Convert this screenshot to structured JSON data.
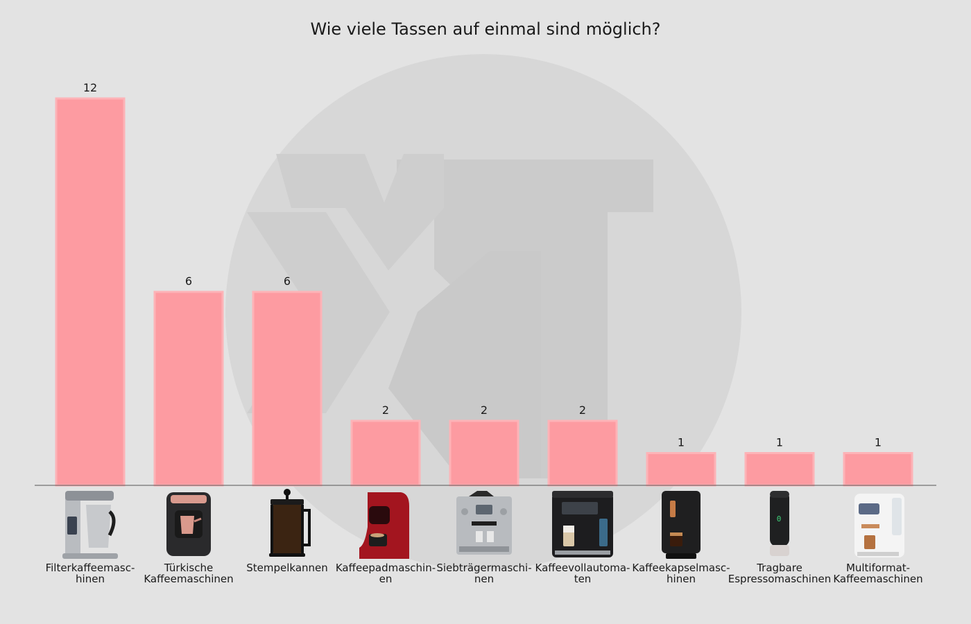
{
  "chart_data": {
    "type": "bar",
    "title": "Wie viele Tassen auf einmal sind möglich?",
    "categories": [
      "Filterkaffeemaschinen",
      "Türkische Kaffeemaschinen",
      "Stempelkannen",
      "Kaffeepadmaschinen",
      "Siebträgermaschinen",
      "Kaffeevollautomaten",
      "Kaffeekapselmaschinen",
      "Tragbare Espressomaschinen",
      "Multiformat-Kaffeemaschinen"
    ],
    "category_label_lines": [
      [
        "Filterkaffeemasc-",
        "hinen"
      ],
      [
        "Türkische",
        "Kaffeemaschinen"
      ],
      [
        "Stempelkannen"
      ],
      [
        "Kaffeepadmaschin-",
        "en"
      ],
      [
        "Siebträgermaschi-",
        "nen"
      ],
      [
        "Kaffeevollautoma-",
        "ten"
      ],
      [
        "Kaffeekapselmasc-",
        "hinen"
      ],
      [
        "Tragbare",
        "Espressomaschinen"
      ],
      [
        "Multiformat-",
        "Kaffeemaschinen"
      ]
    ],
    "values": [
      12,
      6,
      6,
      2,
      2,
      2,
      1,
      1,
      1
    ],
    "ylim": [
      0,
      12
    ],
    "xlabel": "",
    "ylabel": "",
    "grid": false,
    "legend": "none",
    "colors": {
      "background": "#e3e3e3",
      "bar_fill": "#fd9ba1",
      "bar_edge": "#fdb3b7",
      "axis": "#555555",
      "text": "#1a1a1a",
      "watermark": "#d6d6d6",
      "watermark_dark": "#cdcdcd"
    },
    "product_icons": [
      "filter-coffee-machine-icon",
      "turkish-coffee-machine-icon",
      "french-press-icon",
      "coffee-pad-machine-icon",
      "portafilter-machine-icon",
      "fully-automatic-coffee-machine-icon",
      "coffee-capsule-machine-icon",
      "portable-espresso-machine-icon",
      "multiformat-coffee-machine-icon"
    ]
  }
}
